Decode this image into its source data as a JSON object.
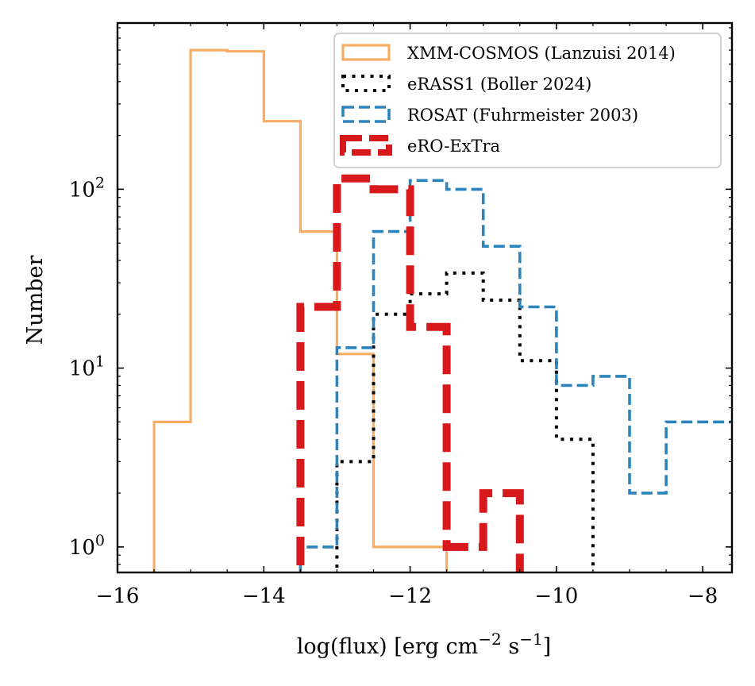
{
  "chart_data": {
    "type": "histogram",
    "xlabel": "log(flux) [erg cm",
    "xlabel_parts": {
      "base": "log(flux) [erg cm",
      "exp1": "−2",
      "mid": " s",
      "exp2": "−1",
      "end": "]"
    },
    "ylabel": "Number",
    "yscale": "log",
    "xlim": [
      -16,
      -7.6
    ],
    "ylim": [
      0.72,
      850
    ],
    "x_ticks": [
      -16,
      -14,
      -12,
      -10,
      -8
    ],
    "x_tick_labels": [
      "−16",
      "−14",
      "−12",
      "−10",
      "−8"
    ],
    "y_ticks": [
      1,
      10,
      100
    ],
    "y_tick_labels": [
      {
        "base": "10",
        "exp": "0"
      },
      {
        "base": "10",
        "exp": "1"
      },
      {
        "base": "10",
        "exp": "2"
      }
    ],
    "legend_position": "top-right",
    "series": [
      {
        "name": "XMM-COSMOS (Lanzuisi 2014)",
        "color": "#f8ad63",
        "style": "solid",
        "bin_edges": [
          -15.5,
          -15.0,
          -14.5,
          -14.0,
          -13.5,
          -13.0,
          -12.5,
          -12.0,
          -11.5
        ],
        "counts": [
          5,
          600,
          590,
          240,
          58,
          12,
          1,
          1
        ]
      },
      {
        "name": "eRASS1 (Boller 2024)",
        "color": "#000000",
        "style": "dotted",
        "bin_edges": [
          -13.0,
          -12.5,
          -12.0,
          -11.5,
          -11.0,
          -10.5,
          -10.0,
          -9.5
        ],
        "counts": [
          3,
          20,
          26,
          34,
          24,
          11,
          4
        ]
      },
      {
        "name": "ROSAT (Fuhrmeister 2003)",
        "color": "#2b84bb",
        "style": "dashed",
        "bin_edges": [
          -13.5,
          -13.0,
          -12.5,
          -12.0,
          -11.5,
          -11.0,
          -10.5,
          -10.0,
          -9.5,
          -9.0,
          -8.5,
          -8.0,
          -7.6
        ],
        "counts": [
          1,
          13,
          58,
          112,
          100,
          48,
          22,
          8,
          9,
          2,
          5,
          5
        ]
      },
      {
        "name": "eRO-ExTra",
        "color": "#d7191c",
        "style": "dashed-thick",
        "bin_edges": [
          -13.5,
          -13.0,
          -12.5,
          -12.0,
          -11.5,
          -11.0,
          -10.5
        ],
        "counts": [
          22,
          115,
          100,
          17,
          1,
          2
        ]
      }
    ]
  }
}
